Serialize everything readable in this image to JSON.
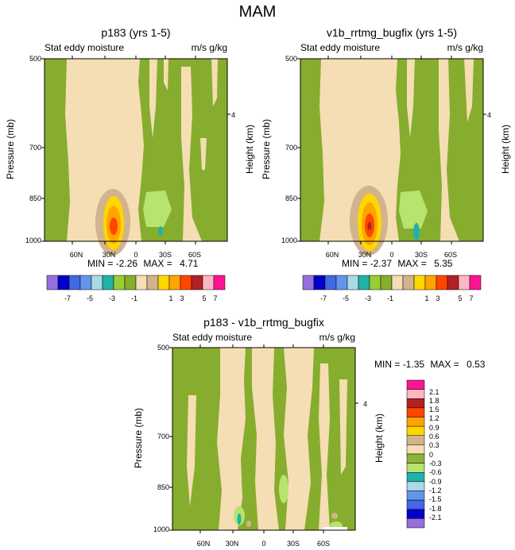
{
  "figure": {
    "title": "MAM",
    "field_label": "Stat eddy moisture",
    "units_label": "m/s g/kg",
    "ylabel_left": "Pressure (mb)",
    "ylabel_right": "Height (km)",
    "min_label": "MIN =",
    "max_label": "MAX ="
  },
  "colors": {
    "diverging_palette": [
      "#9370db",
      "#0000cd",
      "#4169e1",
      "#6495ed",
      "#add8e6",
      "#20b2aa",
      "#9acd32",
      "#86ad2e",
      "#f5deb3",
      "#d2b48c",
      "#ffd700",
      "#ffa500",
      "#ff4500",
      "#b22222",
      "#ffb6c1",
      "#ff1493"
    ],
    "diff_palette": [
      "#9370db",
      "#0000cd",
      "#4169e1",
      "#6495ed",
      "#add8e6",
      "#20b2aa",
      "#b7e36e",
      "#8db33a",
      "#f5deb3",
      "#d2b48c",
      "#ffd700",
      "#ffa500",
      "#ff4500",
      "#b22222",
      "#ffb6c1",
      "#ff1493"
    ]
  },
  "chart_data": [
    {
      "type": "heatmap",
      "title": "p183 (yrs 1-5)",
      "xlabel": "",
      "ylabel": "Pressure (mb)",
      "y2label": "Height (km)",
      "x_ticks": [
        "60N",
        "30N",
        "0",
        "30S",
        "60S"
      ],
      "y_ticks": [
        "500",
        "700",
        "850",
        "1000"
      ],
      "y2_ticks": [
        "4"
      ],
      "stats": {
        "min": "-2.26",
        "max": "4.71"
      },
      "colorbar_labels": [
        "-7",
        "-5",
        "-3",
        "-1",
        "1",
        "3",
        "5",
        "7"
      ],
      "levels": [
        -7,
        -6,
        -5,
        -4,
        -3,
        -2,
        -1,
        0,
        1,
        2,
        3,
        4,
        5,
        6,
        7
      ]
    },
    {
      "type": "heatmap",
      "title": "v1b_rrtmg_bugfix (yrs 1-5)",
      "xlabel": "",
      "ylabel": "Pressure (mb)",
      "y2label": "Height (km)",
      "x_ticks": [
        "60N",
        "30N",
        "0",
        "30S",
        "60S"
      ],
      "y_ticks": [
        "500",
        "700",
        "850",
        "1000"
      ],
      "y2_ticks": [
        "4"
      ],
      "stats": {
        "min": "-2.37",
        "max": "5.35"
      },
      "colorbar_labels": [
        "-7",
        "-5",
        "-3",
        "-1",
        "1",
        "3",
        "5",
        "7"
      ],
      "levels": [
        -7,
        -6,
        -5,
        -4,
        -3,
        -2,
        -1,
        0,
        1,
        2,
        3,
        4,
        5,
        6,
        7
      ]
    },
    {
      "type": "heatmap",
      "title": "p183 - v1b_rrtmg_bugfix",
      "xlabel": "",
      "ylabel": "Pressure (mb)",
      "y2label": "Height (km)",
      "x_ticks": [
        "60N",
        "30N",
        "0",
        "30S",
        "60S"
      ],
      "y_ticks": [
        "500",
        "700",
        "850",
        "1000"
      ],
      "y2_ticks": [
        "4"
      ],
      "stats": {
        "min": "-1.35",
        "max": "0.53"
      },
      "colorbar_labels": [
        "2.1",
        "1.8",
        "1.5",
        "1.2",
        "0.9",
        "0.6",
        "0.3",
        "0",
        "-0.3",
        "-0.6",
        "-0.9",
        "-1.2",
        "-1.5",
        "-1.8",
        "-2.1"
      ],
      "levels": [
        -2.1,
        -1.8,
        -1.5,
        -1.2,
        -0.9,
        -0.6,
        -0.3,
        0,
        0.3,
        0.6,
        0.9,
        1.2,
        1.5,
        1.8,
        2.1
      ]
    }
  ]
}
